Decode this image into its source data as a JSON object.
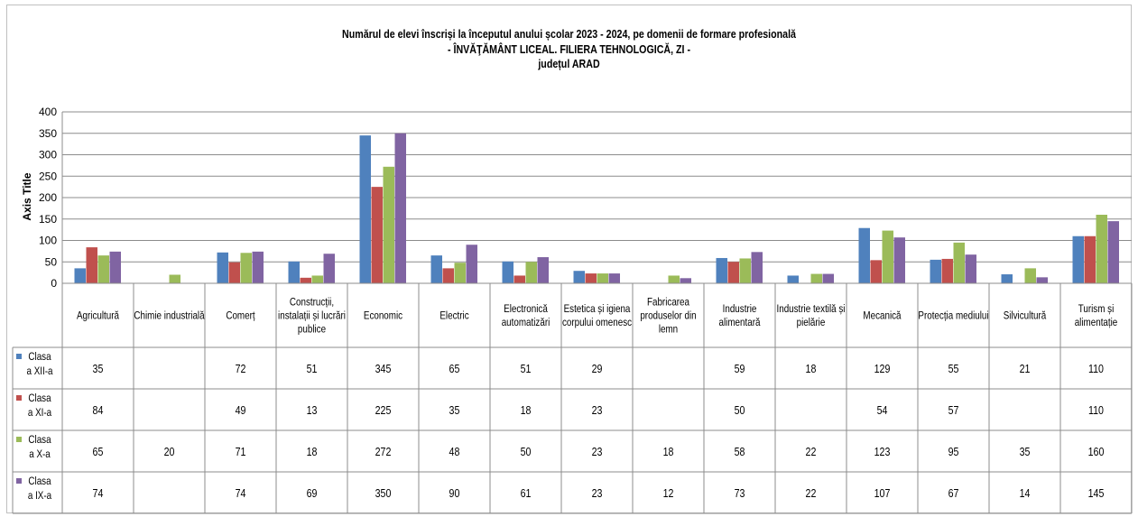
{
  "chart_data": {
    "type": "bar",
    "title": "Numărul de elevi înscriși la începutul anului școlar 2023 - 2024, pe domenii de formare profesională",
    "subtitle": [
      "- ÎNVĂŢĂMÂNT LICEAL. FILIERA TEHNOLOGICĂ, ZI -",
      "județul ARAD"
    ],
    "ylabel": "Axis Title",
    "ylim": [
      0,
      400
    ],
    "yticks": [
      0,
      50,
      100,
      150,
      200,
      250,
      300,
      350,
      400
    ],
    "grid": true,
    "legend": "data-table",
    "categories": [
      [
        "Agricultură"
      ],
      [
        "Chimie industrială"
      ],
      [
        "Comerț"
      ],
      [
        "Construcții,",
        "instalații și lucrări",
        "publice"
      ],
      [
        "Economic"
      ],
      [
        "Electric"
      ],
      [
        "Electronică",
        "automatizări"
      ],
      [
        "Estetica și igiena",
        "corpului omenesc"
      ],
      [
        "Fabricarea",
        "produselor din",
        "lemn"
      ],
      [
        "Industrie",
        "alimentară"
      ],
      [
        "Industrie textilă și",
        "pielărie"
      ],
      [
        "Mecanică"
      ],
      [
        "Protecția mediului"
      ],
      [
        "Silvicultură"
      ],
      [
        "Turism și",
        "alimentație"
      ]
    ],
    "series": [
      {
        "name": [
          "Clasa",
          "a XII-a"
        ],
        "color": "#4f81bd",
        "values": [
          35,
          null,
          72,
          51,
          345,
          65,
          51,
          29,
          null,
          59,
          18,
          129,
          55,
          21,
          110
        ]
      },
      {
        "name": [
          "Clasa",
          "a XI-a"
        ],
        "color": "#c0504d",
        "values": [
          84,
          null,
          49,
          13,
          225,
          35,
          18,
          23,
          null,
          50,
          null,
          54,
          57,
          null,
          110
        ]
      },
      {
        "name": [
          "Clasa",
          "a X-a"
        ],
        "color": "#9bbb59",
        "values": [
          65,
          20,
          71,
          18,
          272,
          48,
          50,
          23,
          18,
          58,
          22,
          123,
          95,
          35,
          160
        ]
      },
      {
        "name": [
          "Clasa",
          "a IX-a"
        ],
        "color": "#8064a2",
        "values": [
          74,
          null,
          74,
          69,
          350,
          90,
          61,
          23,
          12,
          73,
          22,
          107,
          67,
          14,
          145
        ]
      }
    ]
  }
}
